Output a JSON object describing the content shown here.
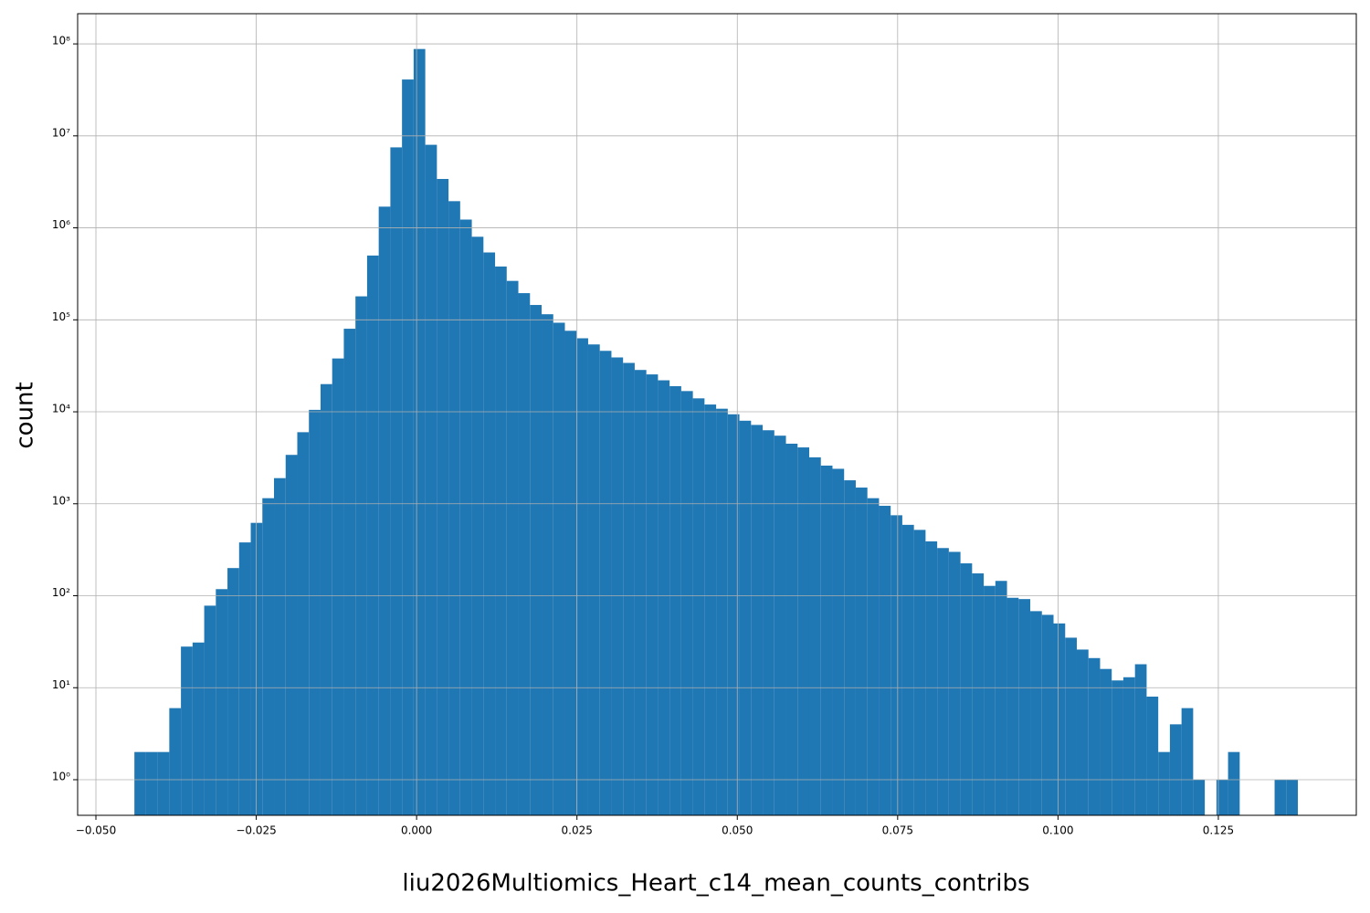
{
  "chart_data": {
    "type": "histogram",
    "xlabel": "liu2026Multiomics_Heart_c14_mean_counts_contribs",
    "ylabel": "count",
    "color": "#1f77b4",
    "log_y": true,
    "grid": true,
    "bins": [
      -0.044,
      -0.042186,
      -0.040372,
      -0.038558,
      -0.036744,
      -0.03493,
      -0.033116,
      -0.031302,
      -0.029488,
      -0.027674,
      -0.02586,
      -0.024046,
      -0.022232,
      -0.020418,
      -0.018604,
      -0.01679,
      -0.014976,
      -0.013162,
      -0.011348,
      -0.009534,
      -0.00772,
      -0.005906,
      -0.004092,
      -0.002278,
      -0.000464,
      0.00135,
      0.003164,
      0.004978,
      0.006792,
      0.008606,
      0.01042,
      0.012234,
      0.014048,
      0.015862,
      0.017676,
      0.01949,
      0.021304,
      0.023118,
      0.024932,
      0.026746,
      0.02856,
      0.030374,
      0.032188,
      0.034002,
      0.035816,
      0.03763,
      0.039444,
      0.041258,
      0.043072,
      0.044886,
      0.0467,
      0.048514,
      0.050328,
      0.052142,
      0.053956,
      0.05577,
      0.057584,
      0.059398,
      0.061212,
      0.063026,
      0.06484,
      0.066654,
      0.068468,
      0.070282,
      0.072096,
      0.07391,
      0.075724,
      0.077538,
      0.079352,
      0.081166,
      0.08298,
      0.084794,
      0.086608,
      0.088422,
      0.090236,
      0.09205,
      0.093864,
      0.095678,
      0.097492,
      0.099306,
      0.10112,
      0.102934,
      0.104748,
      0.106562,
      0.108376,
      0.11019,
      0.112004,
      0.113818,
      0.115632,
      0.117446,
      0.11926,
      0.121074,
      0.122888,
      0.124702,
      0.126516,
      0.12833,
      0.130144,
      0.131958,
      0.133772,
      0.135586,
      0.1374
    ],
    "values": [
      2,
      2,
      2,
      6,
      28,
      31,
      78,
      118,
      200,
      380,
      620,
      1150,
      1900,
      3400,
      6000,
      10500,
      20000,
      38000,
      80000,
      180000,
      500000,
      1700000,
      7500000,
      41000000,
      88000000,
      8000000,
      3400000,
      1950000,
      1230000,
      800000,
      540000,
      380000,
      265000,
      195000,
      145000,
      115000,
      93000,
      76000,
      63000,
      54000,
      46000,
      39000,
      34000,
      28500,
      25500,
      22000,
      19000,
      16800,
      14000,
      12000,
      10800,
      9400,
      8000,
      7200,
      6300,
      5500,
      4500,
      4100,
      3200,
      2600,
      2400,
      1800,
      1500,
      1150,
      950,
      750,
      590,
      520,
      390,
      330,
      300,
      225,
      175,
      128,
      145,
      95,
      92,
      68,
      62,
      50,
      35,
      26,
      21,
      16,
      12,
      13,
      18,
      8,
      2,
      4,
      6,
      1,
      0,
      1,
      2,
      0,
      0,
      0,
      1,
      1
    ],
    "xlim": [
      -0.05285,
      0.14651
    ],
    "ylim": [
      0.41,
      213000000
    ],
    "xticks": [
      {
        "value": -0.05,
        "label": "−0.050"
      },
      {
        "value": -0.025,
        "label": "−0.025"
      },
      {
        "value": 0,
        "label": "0.000"
      },
      {
        "value": 0.025,
        "label": "0.025"
      },
      {
        "value": 0.05,
        "label": "0.050"
      },
      {
        "value": 0.075,
        "label": "0.075"
      },
      {
        "value": 0.1,
        "label": "0.100"
      },
      {
        "value": 0.125,
        "label": "0.125"
      }
    ],
    "yticks": [
      {
        "value": 1,
        "label": "10⁰"
      },
      {
        "value": 10,
        "label": "10¹"
      },
      {
        "value": 100,
        "label": "10²"
      },
      {
        "value": 1000,
        "label": "10³"
      },
      {
        "value": 10000,
        "label": "10⁴"
      },
      {
        "value": 100000,
        "label": "10⁵"
      },
      {
        "value": 1000000,
        "label": "10⁶"
      },
      {
        "value": 10000000,
        "label": "10⁷"
      },
      {
        "value": 100000000,
        "label": "10⁸"
      }
    ]
  }
}
